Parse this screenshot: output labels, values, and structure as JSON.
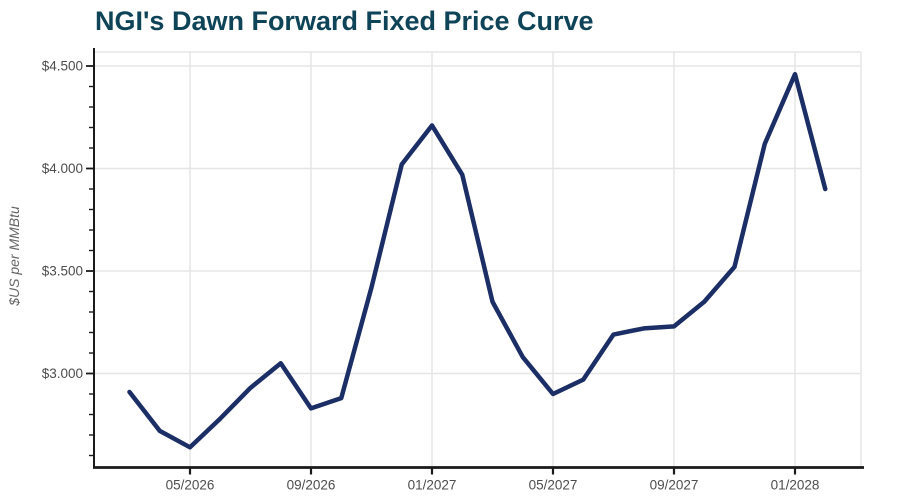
{
  "title": "NGI's Dawn Forward Fixed Price Curve",
  "colors": {
    "title": "#0f4458",
    "line": "#1b2e66",
    "grid": "#e5e5e5",
    "axis": "#1a1a1a",
    "tick_label": "#4d4d4d",
    "y_axis_title": "#666666",
    "background": "#ffffff"
  },
  "chart_data": {
    "type": "line",
    "title": "NGI's Dawn Forward Fixed Price Curve",
    "xlabel": "",
    "ylabel": "$US per MMBtu",
    "grid": true,
    "legend": "none",
    "ylim": [
      2.54,
      4.57
    ],
    "y_minor_tick_step": 0.1,
    "x": [
      "03/2026",
      "04/2026",
      "05/2026",
      "06/2026",
      "07/2026",
      "08/2026",
      "09/2026",
      "10/2026",
      "11/2026",
      "12/2026",
      "01/2027",
      "02/2027",
      "03/2027",
      "04/2027",
      "05/2027",
      "06/2027",
      "07/2027",
      "08/2027",
      "09/2027",
      "10/2027",
      "11/2027",
      "12/2027",
      "01/2028",
      "02/2028"
    ],
    "values": [
      2.91,
      2.72,
      2.64,
      2.78,
      2.93,
      3.05,
      2.83,
      2.88,
      3.42,
      4.02,
      4.21,
      3.97,
      3.35,
      3.08,
      2.9,
      2.97,
      3.19,
      3.22,
      3.23,
      3.35,
      3.52,
      4.12,
      4.46,
      3.9
    ],
    "x_tick_months": [
      "05/2026",
      "09/2026",
      "01/2027",
      "05/2027",
      "09/2027",
      "01/2028"
    ],
    "y_ticks": [
      {
        "value": 4.5,
        "label": "$4.500"
      },
      {
        "value": 4.0,
        "label": "$4.000"
      },
      {
        "value": 3.5,
        "label": "$3.500"
      },
      {
        "value": 3.0,
        "label": "$3.000"
      }
    ]
  }
}
